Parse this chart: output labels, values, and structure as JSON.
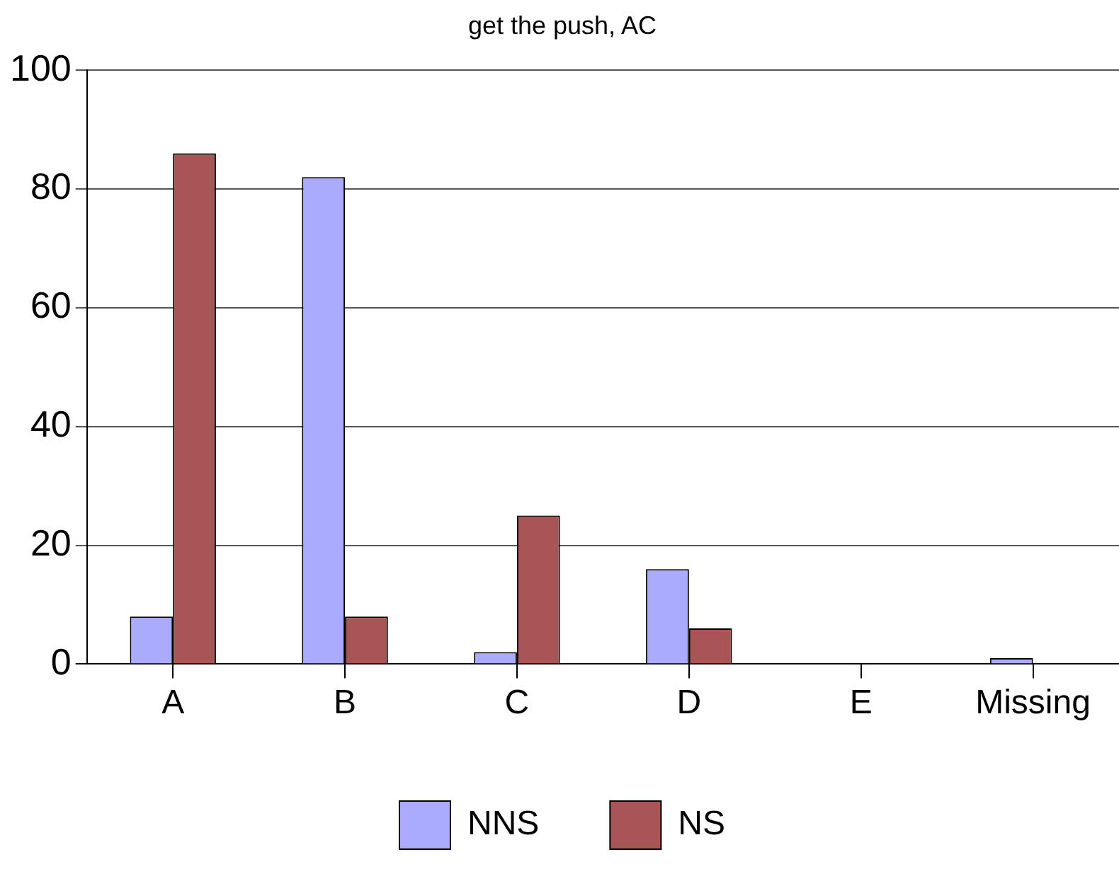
{
  "chart_data": {
    "type": "bar",
    "title": "get the push, AC",
    "categories": [
      "A",
      "B",
      "C",
      "D",
      "E",
      "Missing"
    ],
    "series": [
      {
        "name": "NNS",
        "color": "#aaaaff",
        "values": [
          8,
          82,
          2,
          16,
          0,
          1
        ]
      },
      {
        "name": "NS",
        "color": "#aa5555",
        "values": [
          86,
          8,
          25,
          6,
          0,
          0
        ]
      }
    ],
    "ylim": [
      0,
      100
    ],
    "yticks": [
      0,
      20,
      40,
      60,
      80,
      100
    ],
    "grid": "y",
    "legend": "bottom"
  }
}
